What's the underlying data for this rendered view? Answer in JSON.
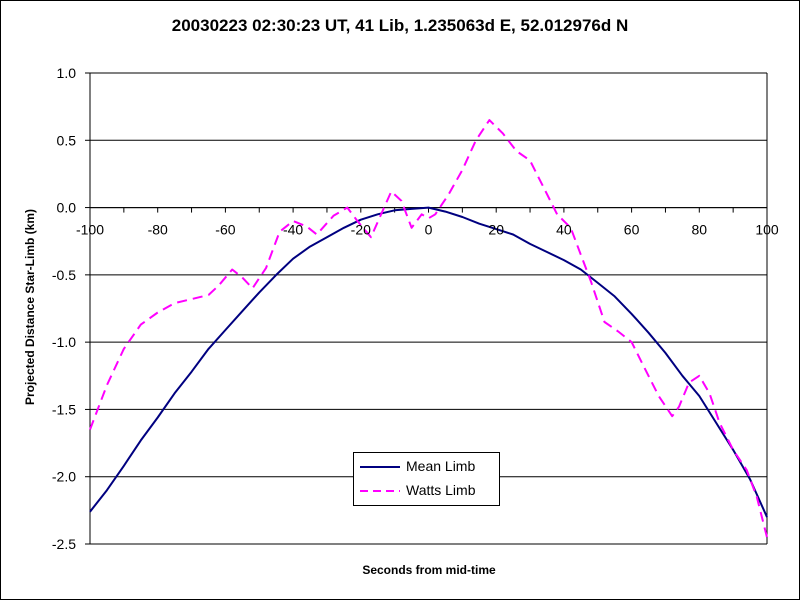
{
  "chart_data": {
    "type": "line",
    "title": "20030223 02:30:23 UT, 41 Lib, 1.235063d E, 52.012976d N",
    "xlabel": "Seconds from mid-time",
    "ylabel": "Projected Distance Star-Limb (km)",
    "xlim": [
      -100,
      100
    ],
    "ylim": [
      -2.5,
      1.0
    ],
    "x_ticks": [
      "-100",
      "-80",
      "-60",
      "-40",
      "-20",
      "0",
      "20",
      "40",
      "60",
      "80",
      "100"
    ],
    "y_ticks": [
      "1.0",
      "0.5",
      "0.0",
      "-0.5",
      "-1.0",
      "-1.5",
      "-2.0",
      "-2.5"
    ],
    "grid": "horizontal",
    "legend_position": "bottom-center",
    "series": [
      {
        "name": "Mean Limb",
        "color": "#000080",
        "style": "solid",
        "x": [
          -100,
          -95,
          -90,
          -85,
          -80,
          -75,
          -70,
          -65,
          -60,
          -55,
          -50,
          -45,
          -40,
          -35,
          -30,
          -25,
          -20,
          -15,
          -10,
          -5,
          0,
          5,
          10,
          15,
          20,
          25,
          30,
          35,
          40,
          45,
          50,
          55,
          60,
          65,
          70,
          75,
          80,
          85,
          90,
          95,
          100
        ],
        "y": [
          -2.26,
          -2.1,
          -1.92,
          -1.73,
          -1.56,
          -1.38,
          -1.22,
          -1.05,
          -0.91,
          -0.77,
          -0.63,
          -0.5,
          -0.38,
          -0.29,
          -0.22,
          -0.15,
          -0.09,
          -0.05,
          -0.02,
          -0.01,
          0.0,
          -0.03,
          -0.07,
          -0.12,
          -0.16,
          -0.2,
          -0.27,
          -0.33,
          -0.39,
          -0.46,
          -0.56,
          -0.66,
          -0.79,
          -0.93,
          -1.08,
          -1.25,
          -1.4,
          -1.6,
          -1.8,
          -2.02,
          -2.3
        ]
      },
      {
        "name": "Watts Limb",
        "color": "#ff00ff",
        "style": "dashed",
        "x": [
          -100,
          -95,
          -90,
          -85,
          -80,
          -75,
          -70,
          -65,
          -62,
          -58,
          -55,
          -52,
          -48,
          -44,
          -40,
          -36,
          -33,
          -28,
          -24,
          -21,
          -17,
          -14,
          -11,
          -8,
          -5,
          -2,
          0,
          2,
          6,
          10,
          14,
          18,
          22,
          26,
          30,
          34,
          38,
          42,
          45,
          48,
          52,
          56,
          60,
          64,
          68,
          72,
          74,
          77,
          80,
          83,
          86,
          90,
          94,
          97,
          100
        ],
        "y": [
          -1.65,
          -1.32,
          -1.05,
          -0.87,
          -0.78,
          -0.71,
          -0.68,
          -0.65,
          -0.58,
          -0.46,
          -0.52,
          -0.6,
          -0.45,
          -0.18,
          -0.1,
          -0.14,
          -0.2,
          -0.06,
          0.0,
          -0.1,
          -0.22,
          -0.05,
          0.12,
          0.05,
          -0.15,
          -0.05,
          -0.08,
          -0.05,
          0.1,
          0.28,
          0.5,
          0.65,
          0.55,
          0.42,
          0.35,
          0.15,
          -0.05,
          -0.15,
          -0.35,
          -0.55,
          -0.85,
          -0.92,
          -1.0,
          -1.2,
          -1.4,
          -1.55,
          -1.48,
          -1.3,
          -1.25,
          -1.38,
          -1.6,
          -1.8,
          -1.95,
          -2.15,
          -2.45
        ]
      }
    ]
  }
}
